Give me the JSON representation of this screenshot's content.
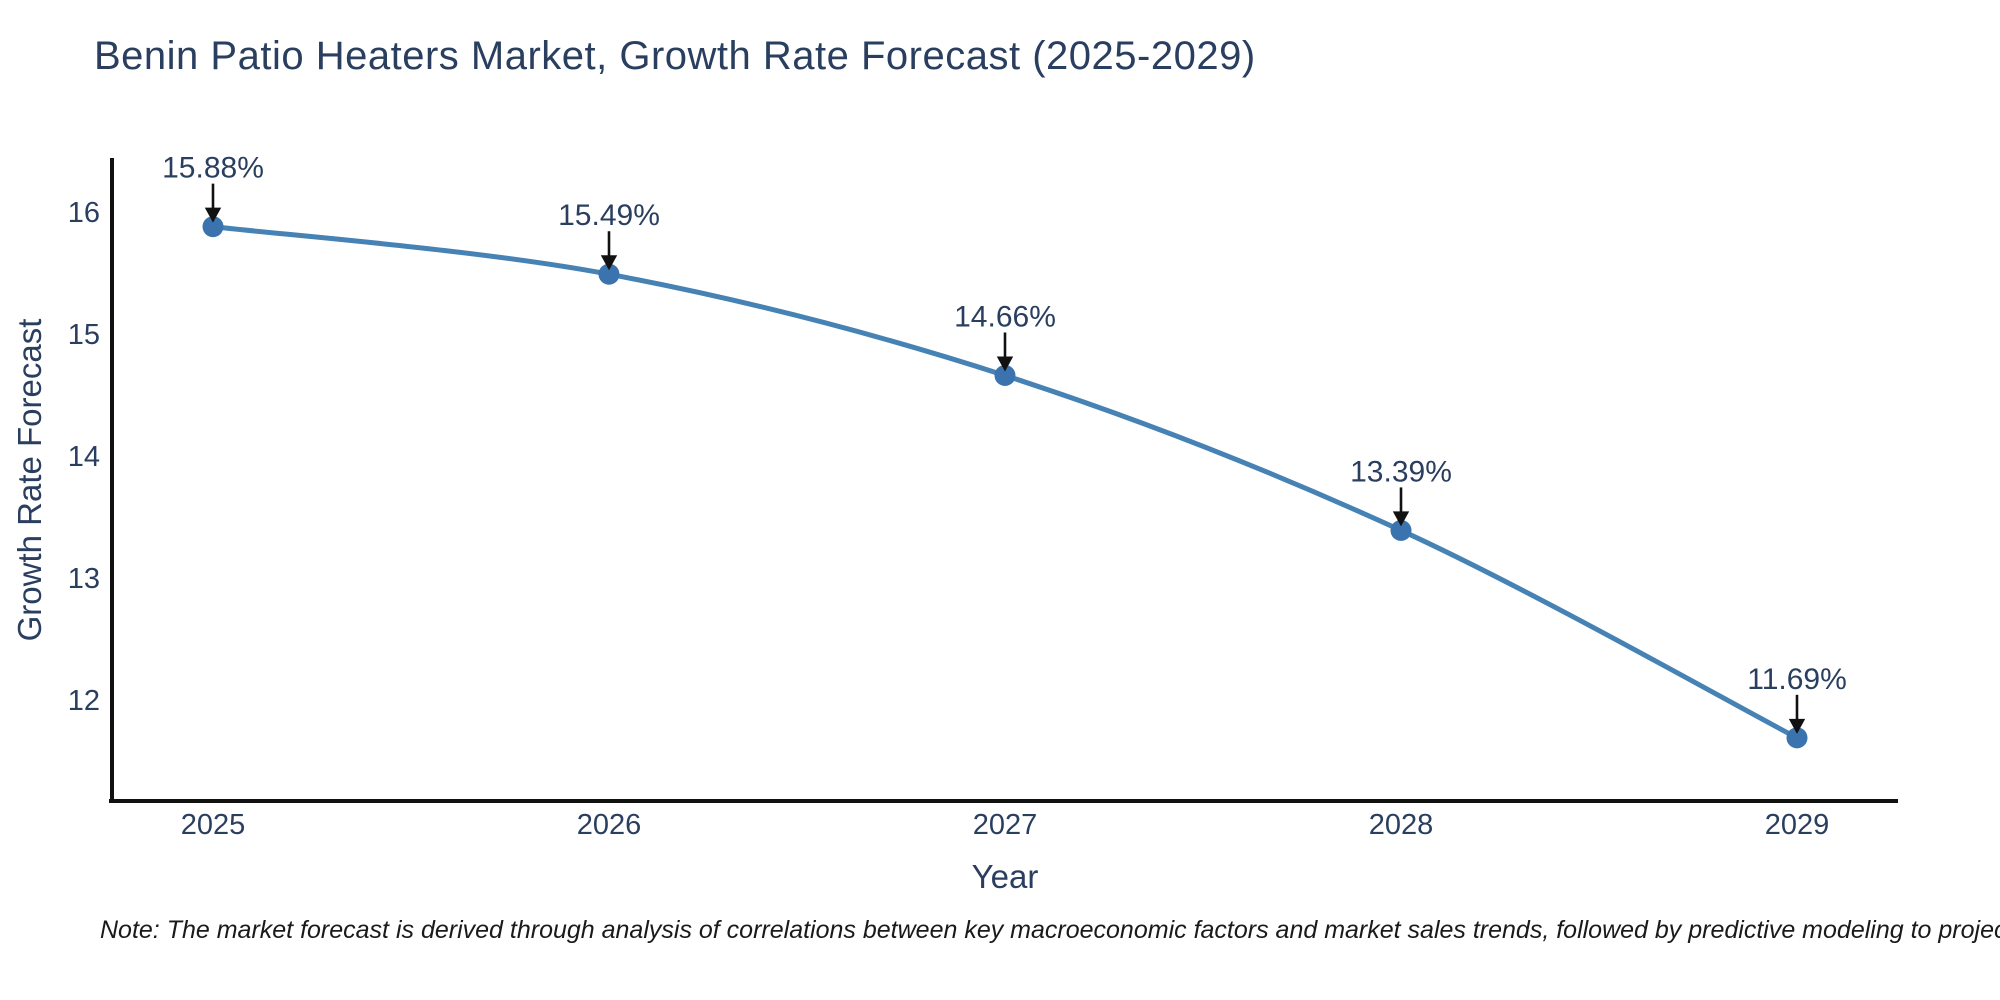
{
  "chart_data": {
    "type": "line",
    "title": "Benin Patio Heaters Market, Growth Rate Forecast (2025-2029)",
    "xlabel": "Year",
    "ylabel": "Growth Rate Forecast",
    "categories": [
      "2025",
      "2026",
      "2027",
      "2028",
      "2029"
    ],
    "series": [
      {
        "name": "Growth Rate Forecast",
        "values": [
          15.88,
          15.49,
          14.66,
          13.39,
          11.69
        ]
      }
    ],
    "point_labels": [
      "15.88%",
      "15.49%",
      "14.66%",
      "13.39%",
      "11.69%"
    ],
    "y_ticks": [
      16,
      15,
      14,
      13,
      12
    ],
    "ylim": [
      11.18,
      16.43
    ],
    "grid": false,
    "legend_position": "none",
    "line_shape": "spline",
    "marker_style": "circle",
    "annotation_arrows": "down",
    "colors": {
      "line": "#4682b4",
      "marker": "#3a73ae",
      "text": "#2a3f5f",
      "axis": "#111111",
      "arrow": "#111111",
      "note": "#1a1a1a",
      "background": "#ffffff"
    },
    "note": "Note: The market forecast is derived through analysis of correlations between key macroeconomic factors and market sales trends, followed by predictive modeling to project future sales"
  }
}
